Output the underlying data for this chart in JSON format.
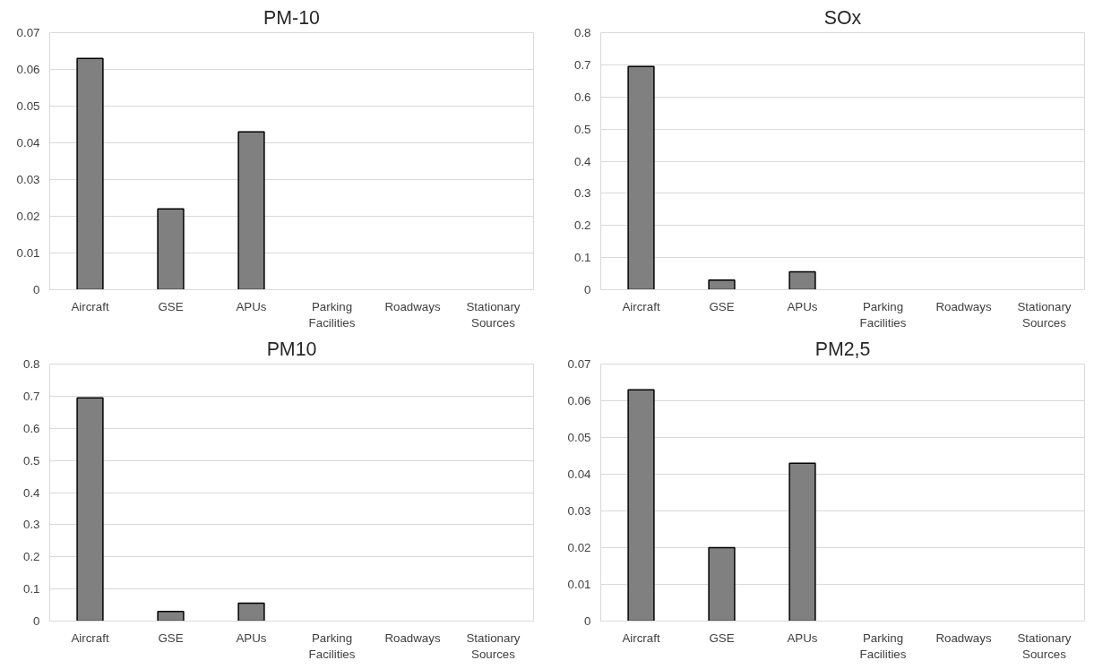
{
  "chart_data": [
    {
      "type": "bar",
      "title": "PM-10",
      "categories": [
        "Aircraft",
        "GSE",
        "APUs",
        "Parking Facilities",
        "Roadways",
        "Stationary Sources"
      ],
      "values": [
        0.063,
        0.022,
        0.043,
        null,
        null,
        null
      ],
      "color": "#808080",
      "ylim": [
        0,
        0.07
      ],
      "yticks": [
        0,
        0.01,
        0.02,
        0.03,
        0.04,
        0.05,
        0.06,
        0.07
      ],
      "grid": "y"
    },
    {
      "type": "bar",
      "title": "SOx",
      "categories": [
        "Aircraft",
        "GSE",
        "APUs",
        "Parking Facilities",
        "Roadways",
        "Stationary Sources"
      ],
      "values": [
        0.695,
        0.03,
        0.056,
        null,
        null,
        null
      ],
      "color": "#808080",
      "ylim": [
        0,
        0.8
      ],
      "yticks": [
        0,
        0.1,
        0.2,
        0.3,
        0.4,
        0.5,
        0.6,
        0.7,
        0.8
      ],
      "grid": "y"
    },
    {
      "type": "bar",
      "title": "PM10",
      "categories": [
        "Aircraft",
        "GSE",
        "APUs",
        "Parking Facilities",
        "Roadways",
        "Stationary Sources"
      ],
      "values": [
        0.695,
        0.03,
        0.056,
        null,
        null,
        null
      ],
      "color": "#808080",
      "ylim": [
        0,
        0.8
      ],
      "yticks": [
        0,
        0.1,
        0.2,
        0.3,
        0.4,
        0.5,
        0.6,
        0.7,
        0.8
      ],
      "grid": "y"
    },
    {
      "type": "bar",
      "title": "PM2,5",
      "categories": [
        "Aircraft",
        "GSE",
        "APUs",
        "Parking Facilities",
        "Roadways",
        "Stationary Sources"
      ],
      "values": [
        0.063,
        0.02,
        0.043,
        null,
        null,
        null
      ],
      "color": "#808080",
      "ylim": [
        0,
        0.07
      ],
      "yticks": [
        0,
        0.01,
        0.02,
        0.03,
        0.04,
        0.05,
        0.06,
        0.07
      ],
      "grid": "y"
    }
  ]
}
